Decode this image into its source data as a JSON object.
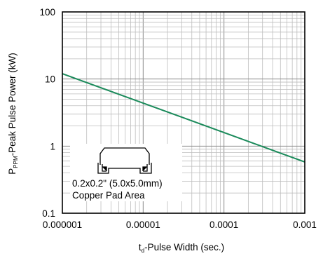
{
  "chart_data": {
    "type": "line",
    "xlabel_main": "t",
    "xlabel_sub": "d",
    "xlabel_rest": "-Pulse Width (sec.)",
    "ylabel_main": "P",
    "ylabel_sub": "PPM",
    "ylabel_rest": "-Peak Pulse Power (kW)",
    "x_scale": "log",
    "y_scale": "log",
    "xlim": [
      1e-06,
      0.001
    ],
    "ylim": [
      0.1,
      100
    ],
    "x_ticks": [
      1e-06,
      1e-05,
      0.0001,
      0.001
    ],
    "x_tick_labels": [
      "0.000001",
      "0.00001",
      "0.0001",
      "0.001"
    ],
    "y_ticks": [
      0.1,
      1,
      10,
      100
    ],
    "y_tick_labels": [
      "0.1",
      "1",
      "10",
      "100"
    ],
    "grid": true,
    "line_color": "#1a8a5a",
    "series": [
      {
        "x": [
          1e-06,
          0.001
        ],
        "y": [
          12,
          0.58
        ]
      }
    ],
    "annotation": {
      "line1": "0.2x0.2\" (5.0x5.0mm)",
      "line2": "Copper Pad Area"
    }
  }
}
